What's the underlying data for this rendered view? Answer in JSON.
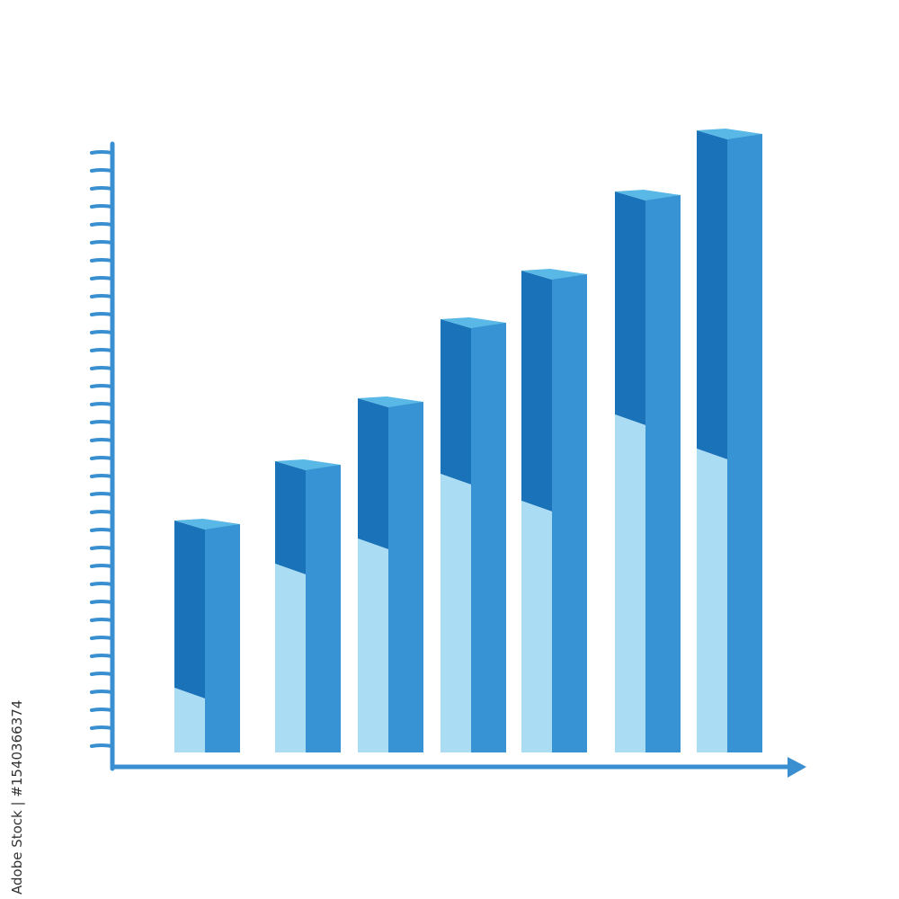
{
  "chart_data": {
    "type": "bar",
    "style": "3d-stacked",
    "title": "",
    "xlabel": "",
    "ylabel": "",
    "categories": [
      "",
      "",
      "",
      "",
      "",
      "",
      ""
    ],
    "series": [
      {
        "values": [
          3.6,
          10.5,
          11.9,
          15.5,
          14.0,
          18.8,
          16.9
        ],
        "color": "#aadcf3"
      },
      {
        "values": [
          9.1,
          5.5,
          7.6,
          8.4,
          12.6,
          12.2,
          17.5
        ],
        "color": "#1a72b8"
      }
    ],
    "totals": [
      12.7,
      16.0,
      19.5,
      23.9,
      26.6,
      31.0,
      34.4
    ],
    "ylim": [
      0,
      34
    ],
    "y_ticks_count": 34,
    "tick_labels": false,
    "grid": false,
    "legend": "none",
    "colors": {
      "axis": "#3a8fd0",
      "front_face": "#3893d4",
      "top_face": "#5ab8e6",
      "dark_face": "#1a72b8",
      "light_face": "#aadcf3"
    }
  },
  "credit": "Adobe Stock | #1540366374"
}
